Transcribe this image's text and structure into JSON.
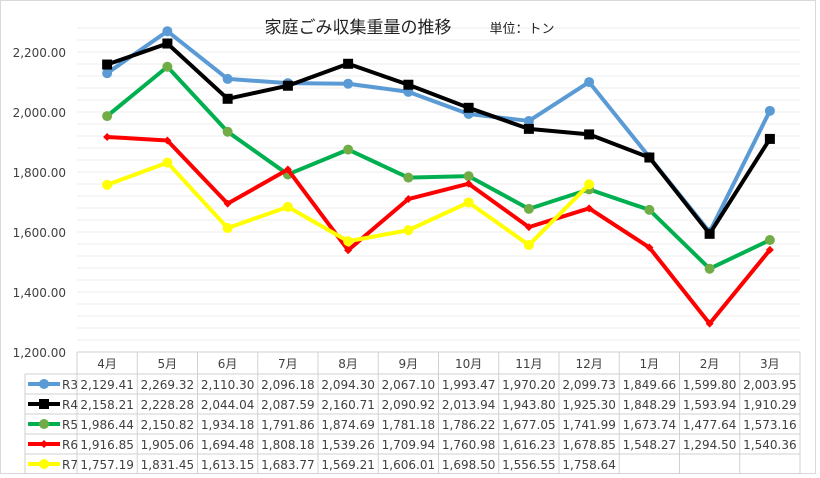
{
  "chart_data": {
    "type": "line",
    "title": "家庭ごみ収集重量の推移",
    "subtitle": "単位：トン",
    "categories": [
      "4月",
      "5月",
      "6月",
      "7月",
      "8月",
      "9月",
      "10月",
      "11月",
      "12月",
      "1月",
      "2月",
      "3月"
    ],
    "ylim": [
      1200,
      2300
    ],
    "yticks": [
      1200,
      1400,
      1600,
      1800,
      2000,
      2200
    ],
    "ytick_labels": [
      "1,200.00",
      "1,400.00",
      "1,600.00",
      "1,800.00",
      "2,000.00",
      "2,200.00"
    ],
    "grid": true,
    "legend": "data-table",
    "series": [
      {
        "name": "R3",
        "color": "#5b9bd5",
        "marker": "circle",
        "values": [
          2129.41,
          2269.32,
          2110.3,
          2096.18,
          2094.3,
          2067.1,
          1993.47,
          1970.2,
          2099.73,
          1849.66,
          1599.8,
          2003.95
        ],
        "labels": [
          "2,129.41",
          "2,269.32",
          "2,110.30",
          "2,096.18",
          "2,094.30",
          "2,067.10",
          "1,993.47",
          "1,970.20",
          "2,099.73",
          "1,849.66",
          "1,599.80",
          "2,003.95"
        ]
      },
      {
        "name": "R4",
        "color": "#000000",
        "marker": "square",
        "values": [
          2158.21,
          2228.28,
          2044.04,
          2087.59,
          2160.71,
          2090.92,
          2013.94,
          1943.8,
          1925.3,
          1848.29,
          1593.94,
          1910.29
        ],
        "labels": [
          "2,158.21",
          "2,228.28",
          "2,044.04",
          "2,087.59",
          "2,160.71",
          "2,090.92",
          "2,013.94",
          "1,943.80",
          "1,925.30",
          "1,848.29",
          "1,593.94",
          "1,910.29"
        ]
      },
      {
        "name": "R5",
        "color": "#00b050",
        "marker_color": "#70ad47",
        "marker": "circle",
        "values": [
          1986.44,
          2150.82,
          1934.18,
          1791.86,
          1874.69,
          1781.18,
          1786.22,
          1677.05,
          1741.99,
          1673.74,
          1477.64,
          1573.16
        ],
        "labels": [
          "1,986.44",
          "2,150.82",
          "1,934.18",
          "1,791.86",
          "1,874.69",
          "1,781.18",
          "1,786.22",
          "1,677.05",
          "1,741.99",
          "1,673.74",
          "1,477.64",
          "1,573.16"
        ]
      },
      {
        "name": "R6",
        "color": "#ff0000",
        "marker": "diamond",
        "values": [
          1916.85,
          1905.06,
          1694.48,
          1808.18,
          1539.26,
          1709.94,
          1760.98,
          1616.23,
          1678.85,
          1548.27,
          1294.5,
          1540.36
        ],
        "labels": [
          "1,916.85",
          "1,905.06",
          "1,694.48",
          "1,808.18",
          "1,539.26",
          "1,709.94",
          "1,760.98",
          "1,616.23",
          "1,678.85",
          "1,548.27",
          "1,294.50",
          "1,540.36"
        ]
      },
      {
        "name": "R7",
        "color": "#ffff00",
        "marker": "circle",
        "values": [
          1757.19,
          1831.45,
          1613.15,
          1683.77,
          1569.21,
          1606.01,
          1698.5,
          1556.55,
          1758.64,
          null,
          null,
          null
        ],
        "labels": [
          "1,757.19",
          "1,831.45",
          "1,613.15",
          "1,683.77",
          "1,569.21",
          "1,606.01",
          "1,698.50",
          "1,556.55",
          "1,758.64",
          "",
          "",
          ""
        ]
      }
    ]
  }
}
